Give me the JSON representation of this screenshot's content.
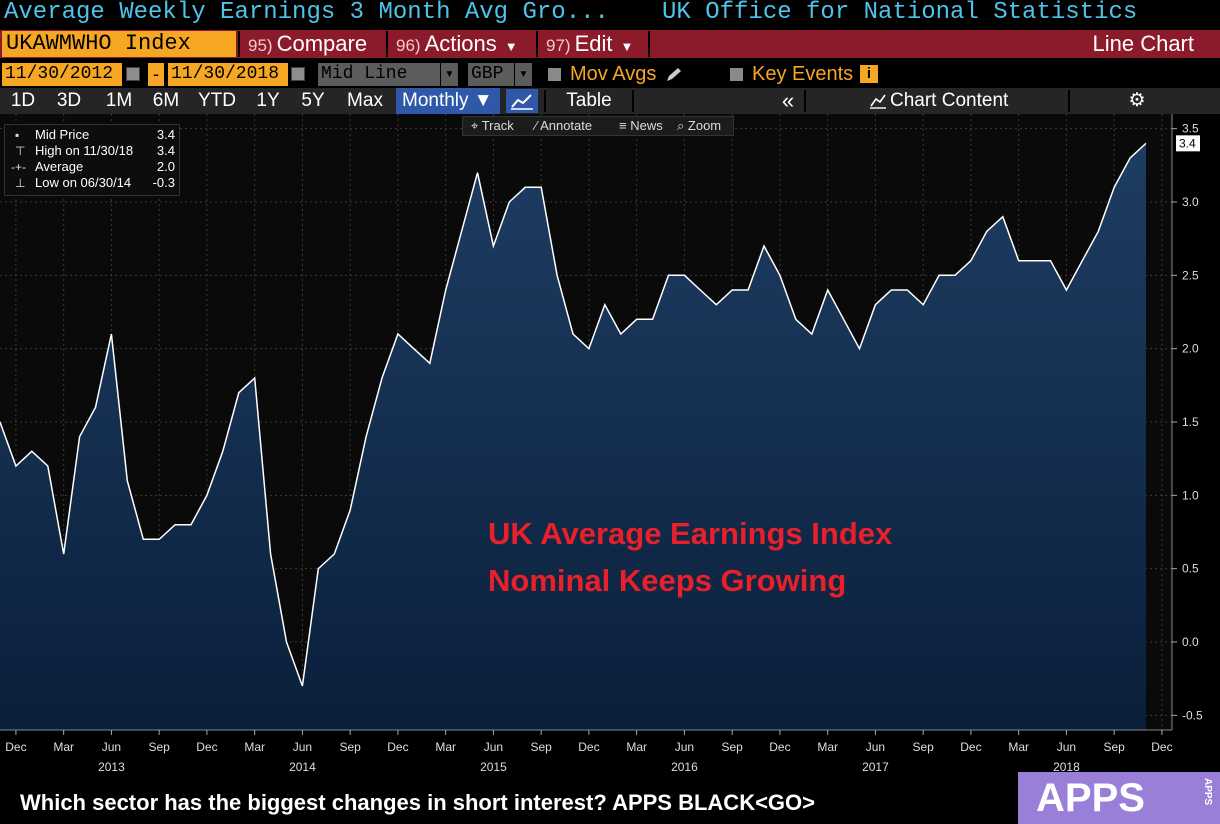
{
  "titlebar": {
    "security_name": "Average Weekly Earnings 3 Month Avg Gro...",
    "source": "UK Office for National Statistics"
  },
  "command_bar": {
    "ticker": "UKAWMWHO Index",
    "compare": {
      "num": "95)",
      "label": "Compare"
    },
    "actions": {
      "num": "96)",
      "label": "Actions"
    },
    "edit": {
      "num": "97)",
      "label": "Edit"
    },
    "chart_type": "Line Chart"
  },
  "date_bar": {
    "start_date": "11/30/2012",
    "separator": "-",
    "end_date": "11/30/2018",
    "price_type": "Mid Line",
    "currency": "GBP",
    "mov_avgs": "Mov Avgs",
    "key_events": "Key Events",
    "info_glyph": "i"
  },
  "range_bar": {
    "ranges": [
      "1D",
      "3D",
      "1M",
      "6M",
      "YTD",
      "1Y",
      "5Y",
      "Max"
    ],
    "frequency": "Monthly ▼",
    "table": "Table",
    "collapse": "«",
    "chart_content": "Chart Content",
    "settings": "⚙"
  },
  "toolstrip": {
    "track": "⌖ Track",
    "annotate": "⁄ Annotate",
    "news": "≡ News",
    "zoom": "⌕ Zoom"
  },
  "legend": {
    "rows": [
      {
        "label": "Mid Price",
        "value": "3.4",
        "symbol": "▪"
      },
      {
        "label": "High on 11/30/18",
        "value": "3.4",
        "symbol": "⊤"
      },
      {
        "label": "Average",
        "value": "2.0",
        "symbol": "-+-"
      },
      {
        "label": "Low on 06/30/14",
        "value": "-0.3",
        "symbol": "⊥"
      }
    ]
  },
  "annotation": {
    "line1": "UK Average Earnings Index",
    "line2": "Nominal Keeps Growing"
  },
  "chart_data": {
    "type": "area",
    "x_range": [
      "2012-11",
      "2018-11"
    ],
    "x": [
      "2012-11",
      "2012-12",
      "2013-01",
      "2013-02",
      "2013-03",
      "2013-04",
      "2013-05",
      "2013-06",
      "2013-07",
      "2013-08",
      "2013-09",
      "2013-10",
      "2013-11",
      "2013-12",
      "2014-01",
      "2014-02",
      "2014-03",
      "2014-04",
      "2014-05",
      "2014-06",
      "2014-07",
      "2014-08",
      "2014-09",
      "2014-10",
      "2014-11",
      "2014-12",
      "2015-01",
      "2015-02",
      "2015-03",
      "2015-04",
      "2015-05",
      "2015-06",
      "2015-07",
      "2015-08",
      "2015-09",
      "2015-10",
      "2015-11",
      "2015-12",
      "2016-01",
      "2016-02",
      "2016-03",
      "2016-04",
      "2016-05",
      "2016-06",
      "2016-07",
      "2016-08",
      "2016-09",
      "2016-10",
      "2016-11",
      "2016-12",
      "2017-01",
      "2017-02",
      "2017-03",
      "2017-04",
      "2017-05",
      "2017-06",
      "2017-07",
      "2017-08",
      "2017-09",
      "2017-10",
      "2017-11",
      "2017-12",
      "2018-01",
      "2018-02",
      "2018-03",
      "2018-04",
      "2018-05",
      "2018-06",
      "2018-07",
      "2018-08",
      "2018-09",
      "2018-10",
      "2018-11"
    ],
    "values": [
      1.5,
      1.2,
      1.3,
      1.2,
      0.6,
      1.4,
      1.6,
      2.1,
      1.1,
      0.7,
      0.7,
      0.8,
      0.8,
      1.0,
      1.3,
      1.7,
      1.8,
      0.6,
      0.0,
      -0.3,
      0.5,
      0.6,
      0.9,
      1.4,
      1.8,
      2.1,
      2.0,
      1.9,
      2.4,
      2.8,
      3.2,
      2.7,
      3.0,
      3.1,
      3.1,
      2.5,
      2.1,
      2.0,
      2.3,
      2.1,
      2.2,
      2.2,
      2.5,
      2.5,
      2.4,
      2.3,
      2.4,
      2.4,
      2.7,
      2.5,
      2.2,
      2.1,
      2.4,
      2.2,
      2.0,
      2.3,
      2.4,
      2.4,
      2.3,
      2.5,
      2.5,
      2.6,
      2.8,
      2.9,
      2.6,
      2.6,
      2.6,
      2.4,
      2.6,
      2.8,
      3.1,
      3.3,
      3.4
    ],
    "ylim": [
      -0.6,
      3.6
    ],
    "yticks": [
      -0.5,
      0.0,
      0.5,
      1.0,
      1.5,
      2.0,
      2.5,
      3.0,
      3.5
    ],
    "ytick_labels": [
      "-0.5",
      "0.0",
      "0.5",
      "1.0",
      "1.5",
      "2.0",
      "2.5",
      "3.0",
      "3.5"
    ],
    "last_value_label": "3.4",
    "xticks": [
      {
        "date": "2012-12",
        "label": "Dec"
      },
      {
        "date": "2013-03",
        "label": "Mar"
      },
      {
        "date": "2013-06",
        "label": "Jun"
      },
      {
        "date": "2013-09",
        "label": "Sep"
      },
      {
        "date": "2013-12",
        "label": "Dec"
      },
      {
        "date": "2014-03",
        "label": "Mar"
      },
      {
        "date": "2014-06",
        "label": "Jun"
      },
      {
        "date": "2014-09",
        "label": "Sep"
      },
      {
        "date": "2014-12",
        "label": "Dec"
      },
      {
        "date": "2015-03",
        "label": "Mar"
      },
      {
        "date": "2015-06",
        "label": "Jun"
      },
      {
        "date": "2015-09",
        "label": "Sep"
      },
      {
        "date": "2015-12",
        "label": "Dec"
      },
      {
        "date": "2016-03",
        "label": "Mar"
      },
      {
        "date": "2016-06",
        "label": "Jun"
      },
      {
        "date": "2016-09",
        "label": "Sep"
      },
      {
        "date": "2016-12",
        "label": "Dec"
      },
      {
        "date": "2017-03",
        "label": "Mar"
      },
      {
        "date": "2017-06",
        "label": "Jun"
      },
      {
        "date": "2017-09",
        "label": "Sep"
      },
      {
        "date": "2017-12",
        "label": "Dec"
      },
      {
        "date": "2018-03",
        "label": "Mar"
      },
      {
        "date": "2018-06",
        "label": "Jun"
      },
      {
        "date": "2018-09",
        "label": "Sep"
      },
      {
        "date": "2018-12",
        "label": "Dec"
      }
    ],
    "year_labels": [
      {
        "date": "2013-06",
        "label": "2013"
      },
      {
        "date": "2014-06",
        "label": "2014"
      },
      {
        "date": "2015-06",
        "label": "2015"
      },
      {
        "date": "2016-06",
        "label": "2016"
      },
      {
        "date": "2017-06",
        "label": "2017"
      },
      {
        "date": "2018-06",
        "label": "2018"
      }
    ],
    "grid": true,
    "line_color": "#ffffff",
    "fill_color_top": "#1e3d63",
    "fill_color_bottom": "#0a1f3b"
  },
  "footer": {
    "message": "Which sector has the biggest changes in short interest?  APPS BLACK<GO>",
    "apps_label": "APPS",
    "apps_small": "APPS"
  }
}
